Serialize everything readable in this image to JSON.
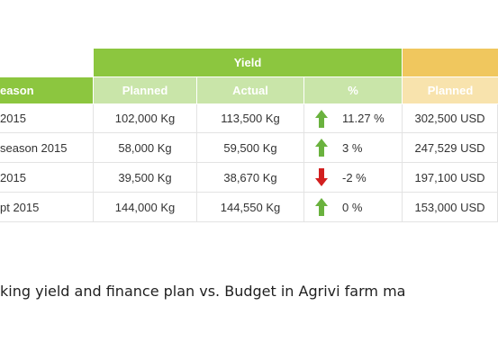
{
  "colors": {
    "yield_header": "#8cc63f",
    "yield_subheader": "#c9e5a9",
    "season_header": "#8cc63f",
    "budget_header": "#f0c75e",
    "budget_subheader": "#f8e3ad",
    "arrow_up": "#6ab23e",
    "arrow_down": "#d21f1f"
  },
  "table": {
    "season_header": "eason",
    "groups": {
      "yield": "Yield",
      "budget": ""
    },
    "subheaders": {
      "yield_planned": "Planned",
      "yield_actual": "Actual",
      "yield_pct": "%",
      "budget_planned": "Planned"
    },
    "rows": [
      {
        "season": "2015",
        "planned": "102,000 Kg",
        "actual": "113,500 Kg",
        "trend_icon": "arrow-up-icon",
        "pct": "11.27 %",
        "budget_planned": "302,500 USD"
      },
      {
        "season": "season 2015",
        "planned": "58,000 Kg",
        "actual": "59,500 Kg",
        "trend_icon": "arrow-up-icon",
        "pct": "3 %",
        "budget_planned": "247,529 USD"
      },
      {
        "season": "2015",
        "planned": "39,500 Kg",
        "actual": "38,670 Kg",
        "trend_icon": "arrow-down-icon",
        "pct": "-2 %",
        "budget_planned": "197,100 USD"
      },
      {
        "season": "pt 2015",
        "planned": "144,000 Kg",
        "actual": "144,550 Kg",
        "trend_icon": "arrow-up-icon",
        "pct": "0 %",
        "budget_planned": "153,000 USD"
      }
    ]
  },
  "caption": "king yield and finance plan vs. Budget in Agrivi farm ma"
}
